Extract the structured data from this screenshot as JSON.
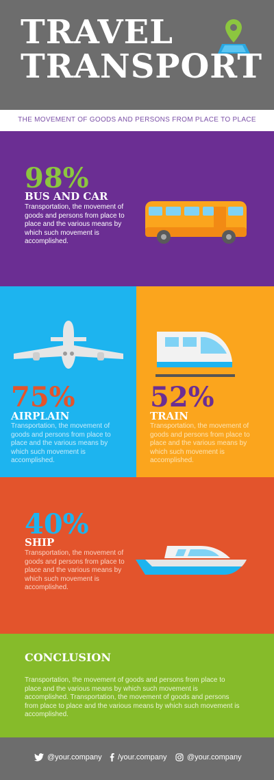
{
  "header": {
    "title_line1": "TRAVEL",
    "title_line2": "TRANSPORT",
    "subtitle": "THE MOVEMENT OF GOODS AND PERSONS FROM PLACE TO PLACE"
  },
  "sections": {
    "bus": {
      "percent": "98%",
      "label": "BUS AND CAR",
      "description": "Transportation, the movement of goods and persons from place to place and the various means by which such movement is accomplished."
    },
    "airplane": {
      "percent": "75%",
      "label": "AIRPLAIN",
      "description": "Transportation, the movement of goods and persons from place to place and the various means by which such movement is accomplished."
    },
    "train": {
      "percent": "52%",
      "label": "TRAIN",
      "description": "Transportation, the movement of goods and persons from place to place and the various means by which such movement is accomplished."
    },
    "ship": {
      "percent": "40%",
      "label": "SHIP",
      "description": "Transportation, the movement of goods and persons from place to place and the various means by which such movement is accomplished."
    }
  },
  "conclusion": {
    "title": "CONCLUSION",
    "text": "Transportation, the movement of goods and persons from place to place and the various means by which such movement is accomplished. Transportation, the movement of goods and persons from place to place and the various means by which such movement is accomplished."
  },
  "footer": {
    "twitter": "@your.company",
    "facebook": "/your.company",
    "instagram": "@your.company"
  },
  "icons": [
    "map-pin-icon",
    "bus-icon",
    "airplane-icon",
    "train-icon",
    "ship-icon",
    "twitter-icon",
    "facebook-icon",
    "instagram-icon"
  ],
  "colors": {
    "header_bg": "#6d6d6d",
    "purple": "#6b2e93",
    "blue": "#1db4ef",
    "orange": "#fba51d",
    "red": "#e3542c",
    "green": "#86bb2a",
    "accent_green": "#8cc63f"
  }
}
